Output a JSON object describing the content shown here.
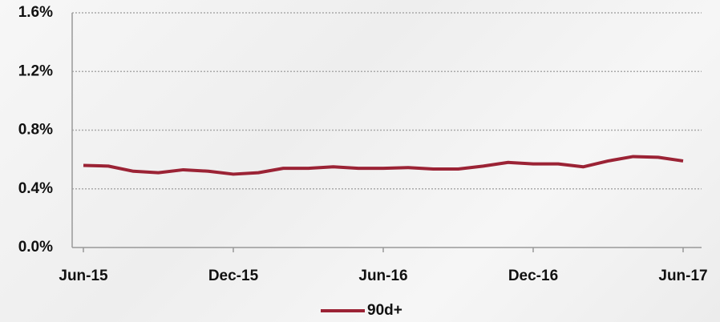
{
  "chart_data": {
    "type": "line",
    "categories": [
      "Jun-15",
      null,
      null,
      null,
      null,
      null,
      "Dec-15",
      null,
      null,
      null,
      null,
      null,
      "Jun-16",
      null,
      null,
      null,
      null,
      null,
      "Dec-16",
      null,
      null,
      null,
      null,
      null,
      "Jun-17"
    ],
    "series": [
      {
        "name": "90d+",
        "color": "#9b2335",
        "values": [
          0.56,
          0.555,
          0.52,
          0.51,
          0.53,
          0.52,
          0.5,
          0.51,
          0.54,
          0.54,
          0.55,
          0.54,
          0.54,
          0.545,
          0.535,
          0.535,
          0.555,
          0.58,
          0.57,
          0.57,
          0.55,
          0.59,
          0.62,
          0.615,
          0.59
        ]
      }
    ],
    "ylim": [
      0,
      1.6
    ],
    "yticks": [
      {
        "value": 0,
        "label": "0.0%"
      },
      {
        "value": 0.4,
        "label": "0.4%"
      },
      {
        "value": 0.8,
        "label": "0.8%"
      },
      {
        "value": 1.2,
        "label": "1.2%"
      },
      {
        "value": 1.6,
        "label": "1.6%"
      }
    ],
    "grid": true,
    "legend": "bottom"
  }
}
